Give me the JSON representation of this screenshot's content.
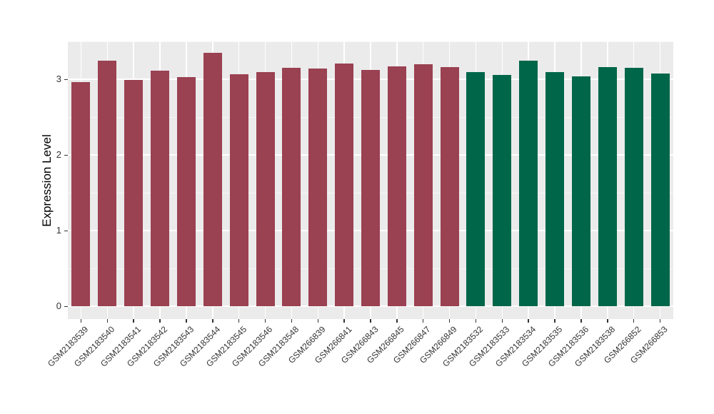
{
  "chart_data": {
    "type": "bar",
    "title": "",
    "xlabel": "",
    "ylabel": "Expression Level",
    "ylim": [
      0,
      3.5
    ],
    "yticks": [
      0,
      1,
      2,
      3
    ],
    "grid": "major and minor white gridlines on gray panel",
    "legend_position": "none",
    "panel_background": "#EBEBEB",
    "categories": [
      "GSM2183539",
      "GSM2183540",
      "GSM2183541",
      "GSM2183542",
      "GSM2183543",
      "GSM2183544",
      "GSM2183545",
      "GSM2183546",
      "GSM2183548",
      "GSM266839",
      "GSM266841",
      "GSM266843",
      "GSM266845",
      "GSM266847",
      "GSM266849",
      "GSM2183532",
      "GSM2183533",
      "GSM2183534",
      "GSM2183535",
      "GSM2183536",
      "GSM2183538",
      "GSM266852",
      "GSM266853"
    ],
    "values": [
      2.96,
      3.25,
      2.99,
      3.11,
      3.03,
      3.35,
      3.07,
      3.09,
      3.15,
      3.14,
      3.21,
      3.12,
      3.17,
      3.2,
      3.16,
      3.09,
      3.06,
      3.25,
      3.09,
      3.04,
      3.16,
      3.15,
      3.08
    ],
    "groups": [
      0,
      0,
      0,
      0,
      0,
      0,
      0,
      0,
      0,
      0,
      0,
      0,
      0,
      0,
      0,
      1,
      1,
      1,
      1,
      1,
      1,
      1,
      1
    ],
    "group_colors": [
      "#9A4152",
      "#006649"
    ]
  }
}
